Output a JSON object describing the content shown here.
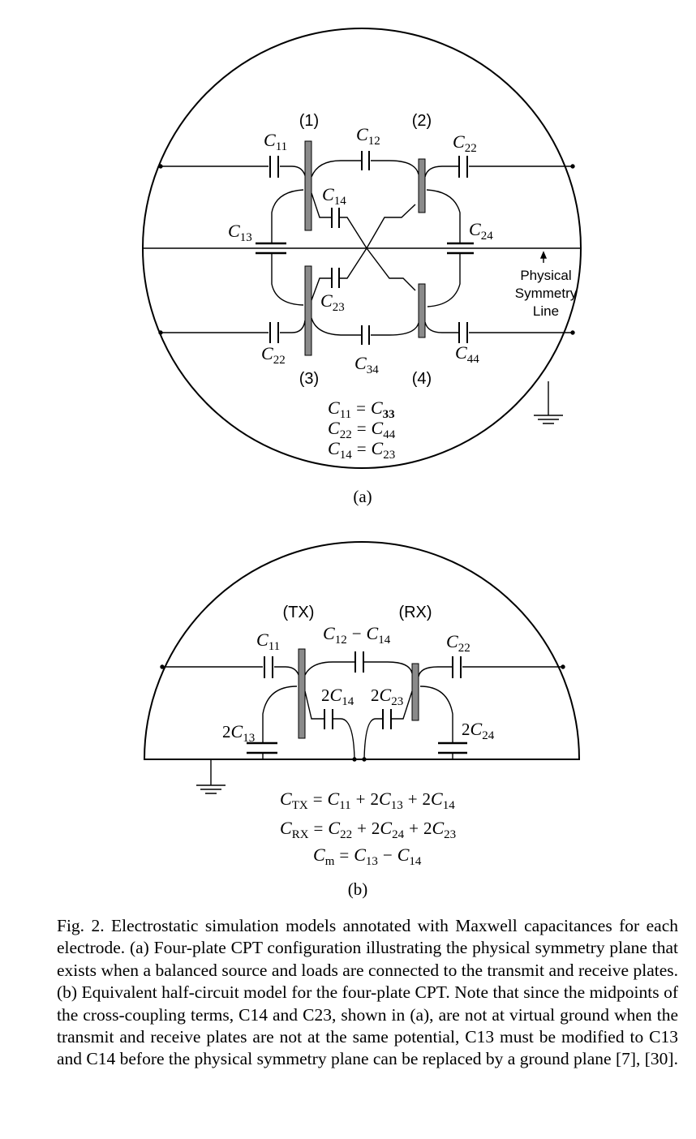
{
  "diagram_a": {
    "plate_labels": [
      "(1)",
      "(2)",
      "(3)",
      "(4)"
    ],
    "capacitors": [
      {
        "id": "a_c11",
        "sym": "C",
        "sub": "11"
      },
      {
        "id": "a_c12",
        "sym": "C",
        "sub": "12"
      },
      {
        "id": "a_c22_top",
        "sym": "C",
        "sub": "22"
      },
      {
        "id": "a_c14",
        "sym": "C",
        "sub": "14"
      },
      {
        "id": "a_c13",
        "sym": "C",
        "sub": "13"
      },
      {
        "id": "a_c24",
        "sym": "C",
        "sub": "24"
      },
      {
        "id": "a_c23",
        "sym": "C",
        "sub": "23"
      },
      {
        "id": "a_c22_bot",
        "sym": "C",
        "sub": "22"
      },
      {
        "id": "a_c34",
        "sym": "C",
        "sub": "34"
      },
      {
        "id": "a_c44",
        "sym": "C",
        "sub": "44"
      }
    ],
    "symmetry_label": [
      "Physical",
      "Symmetry",
      "Line"
    ],
    "equations": [
      {
        "l": "11",
        "r": "33"
      },
      {
        "l": "22",
        "r": "44"
      },
      {
        "l": "14",
        "r": "23"
      }
    ],
    "equation_symbol": "C",
    "equals": "=",
    "panel_label": "(a)"
  },
  "diagram_b": {
    "plate_labels": [
      "(TX)",
      "(RX)"
    ],
    "capacitors": [
      {
        "id": "b_c11",
        "pre": "",
        "sym": "C",
        "sub": "11"
      },
      {
        "id": "b_c22",
        "pre": "",
        "sym": "C",
        "sub": "22"
      },
      {
        "id": "b_c14",
        "pre": "2",
        "sym": "C",
        "sub": "14"
      },
      {
        "id": "b_c23",
        "pre": "2",
        "sym": "C",
        "sub": "23"
      },
      {
        "id": "b_c13",
        "pre": "2",
        "sym": "C",
        "sub": "13"
      },
      {
        "id": "b_c24",
        "pre": "2",
        "sym": "C",
        "sub": "24"
      }
    ],
    "c12_minus_c14": {
      "a_sub": "12",
      "minus": "−",
      "b_sub": "14"
    },
    "equations": [
      {
        "lhs_sub": "TX",
        "t1": "11",
        "t2": "13",
        "t3": "14"
      },
      {
        "lhs_sub": "RX",
        "t1": "22",
        "t2": "24",
        "t3": "23"
      }
    ],
    "cm_equation": {
      "lhs_sub": "m",
      "a_sub": "13",
      "minus": "−",
      "b_sub": "14"
    },
    "plus": "+",
    "two": "2",
    "panel_label": "(b)"
  },
  "caption": "Fig. 2.  Electrostatic simulation models annotated with Maxwell capacitances for each electrode. (a) Four-plate CPT configuration illustrating the physical symmetry plane that exists when a balanced source and loads are connected to the transmit and receive plates. (b) Equivalent half-circuit model for the four-plate CPT. Note that since the midpoints of the cross-coupling terms, C14 and C23, shown in (a), are not at virtual ground when the transmit and receive plates are not at the same potential, C13 must be modified to C13 and C14 before the physical symmetry plane can be replaced by a ground plane [7], [30].",
  "colors": {
    "plate_fill": "#8a8a8a",
    "line": "#000000",
    "background": "#ffffff"
  }
}
